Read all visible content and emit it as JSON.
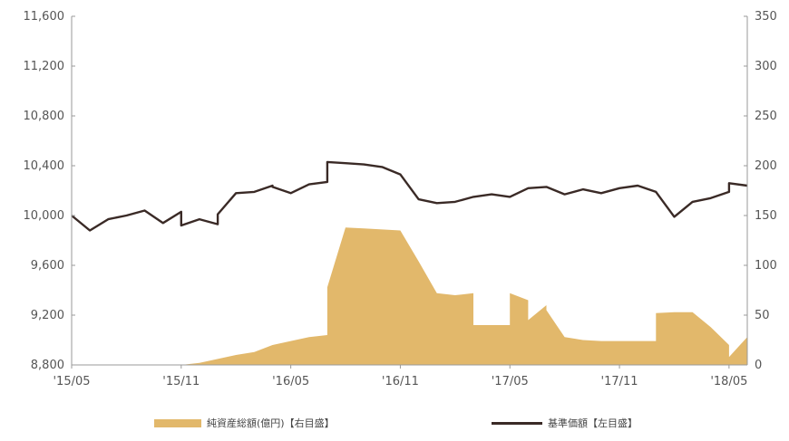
{
  "chart_data": {
    "type": "line",
    "title": "",
    "x_tick_labels": [
      "'15/05",
      "'15/11",
      "'16/05",
      "'16/11",
      "'17/05",
      "'17/11",
      "'18/05"
    ],
    "left_axis": {
      "ticks": [
        8800,
        9200,
        9600,
        10000,
        10400,
        10800,
        11200,
        11600
      ],
      "tick_labels": [
        "8,800",
        "9,200",
        "9,600",
        "10,000",
        "10,400",
        "10,800",
        "11,200",
        "11,600"
      ],
      "ylim": [
        8800,
        11600
      ]
    },
    "right_axis": {
      "ticks": [
        0,
        50,
        100,
        150,
        200,
        250,
        300,
        350
      ],
      "tick_labels": [
        "0",
        "50",
        "100",
        "150",
        "200",
        "250",
        "300",
        "350"
      ],
      "ylim": [
        0,
        350
      ]
    },
    "xlim": [
      "2015-05",
      "2018-06"
    ],
    "grid": false,
    "legend_position": "bottom",
    "series": [
      {
        "name": "純資産総額(億円)【右目盛】",
        "kind": "area",
        "axis": "right",
        "color": "#e2b86b",
        "points": [
          [
            "2015-05",
            0
          ],
          [
            "2015-11",
            0
          ],
          [
            "2015-12",
            2
          ],
          [
            "2016-01",
            6
          ],
          [
            "2016-02",
            10
          ],
          [
            "2016-03",
            13
          ],
          [
            "2016-04",
            20
          ],
          [
            "2016-05",
            24
          ],
          [
            "2016-06",
            28
          ],
          [
            "2016-07",
            30
          ],
          [
            "2016-07",
            78
          ],
          [
            "2016-08",
            138
          ],
          [
            "2016-09",
            137
          ],
          [
            "2016-10",
            136
          ],
          [
            "2016-11",
            135
          ],
          [
            "2016-12",
            104
          ],
          [
            "2017-01",
            72
          ],
          [
            "2017-02",
            70
          ],
          [
            "2017-03",
            72
          ],
          [
            "2017-03",
            40
          ],
          [
            "2017-04",
            40
          ],
          [
            "2017-05",
            40
          ],
          [
            "2017-05",
            56
          ],
          [
            "2017-05",
            72
          ],
          [
            "2017-06",
            65
          ],
          [
            "2017-06",
            45
          ],
          [
            "2017-07",
            60
          ],
          [
            "2017-07",
            55
          ],
          [
            "2017-08",
            28
          ],
          [
            "2017-09",
            25
          ],
          [
            "2017-10",
            24
          ],
          [
            "2017-11",
            24
          ],
          [
            "2017-12",
            24
          ],
          [
            "2018-01",
            24
          ],
          [
            "2018-01",
            52
          ],
          [
            "2018-02",
            53
          ],
          [
            "2018-03",
            53
          ],
          [
            "2018-04",
            38
          ],
          [
            "2018-05",
            20
          ],
          [
            "2018-05",
            8
          ],
          [
            "2018-06",
            28
          ]
        ]
      },
      {
        "name": "基準価額【左目盛】",
        "kind": "line",
        "axis": "left",
        "color": "#3a2a26",
        "points": [
          [
            "2015-05",
            10000
          ],
          [
            "2015-06",
            9880
          ],
          [
            "2015-07",
            9970
          ],
          [
            "2015-08",
            10000
          ],
          [
            "2015-09",
            10040
          ],
          [
            "2015-10",
            9940
          ],
          [
            "2015-11",
            10030
          ],
          [
            "2015-11",
            9920
          ],
          [
            "2015-12",
            9970
          ],
          [
            "2016-01",
            9930
          ],
          [
            "2016-01",
            10010
          ],
          [
            "2016-02",
            10180
          ],
          [
            "2016-03",
            10190
          ],
          [
            "2016-04",
            10240
          ],
          [
            "2016-04",
            10230
          ],
          [
            "2016-05",
            10180
          ],
          [
            "2016-06",
            10250
          ],
          [
            "2016-07",
            10270
          ],
          [
            "2016-07",
            10430
          ],
          [
            "2016-08",
            10420
          ],
          [
            "2016-09",
            10410
          ],
          [
            "2016-10",
            10390
          ],
          [
            "2016-11",
            10330
          ],
          [
            "2016-12",
            10130
          ],
          [
            "2017-01",
            10100
          ],
          [
            "2017-02",
            10110
          ],
          [
            "2017-03",
            10150
          ],
          [
            "2017-04",
            10170
          ],
          [
            "2017-05",
            10150
          ],
          [
            "2017-06",
            10220
          ],
          [
            "2017-07",
            10230
          ],
          [
            "2017-08",
            10170
          ],
          [
            "2017-09",
            10210
          ],
          [
            "2017-10",
            10180
          ],
          [
            "2017-11",
            10220
          ],
          [
            "2017-12",
            10240
          ],
          [
            "2018-01",
            10190
          ],
          [
            "2018-02",
            9990
          ],
          [
            "2018-03",
            10110
          ],
          [
            "2018-04",
            10140
          ],
          [
            "2018-05",
            10190
          ],
          [
            "2018-05",
            10260
          ],
          [
            "2018-06",
            10240
          ]
        ]
      }
    ]
  }
}
